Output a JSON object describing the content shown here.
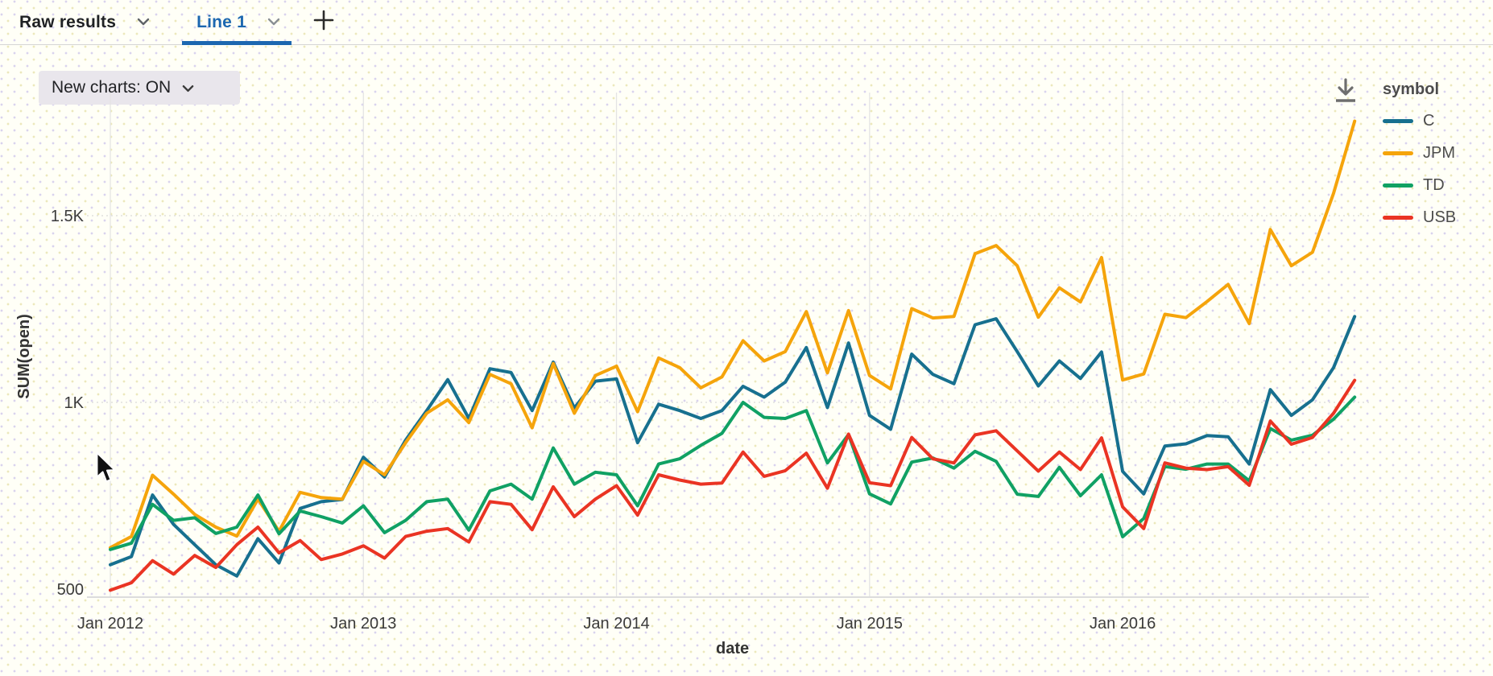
{
  "header": {
    "tabs": [
      {
        "label": "Raw results",
        "active": false
      },
      {
        "label": "Line 1",
        "active": true
      }
    ],
    "add_tab_label": "+"
  },
  "toolbar": {
    "new_charts_label": "New charts: ON"
  },
  "icons": {
    "download": "download-icon",
    "chevron_down": "chevron-down-icon",
    "plus": "plus-icon",
    "mouse_cursor": "mouse-pointer"
  },
  "colors": {
    "accent_blue": "#1c67b0",
    "series_C": "#17708f",
    "series_JPM": "#f5a40b",
    "series_TD": "#10a164",
    "series_USB": "#ea3423",
    "grid": "#e4e4e4",
    "axis_line": "#dcdcdc"
  },
  "legend": {
    "title": "symbol"
  },
  "chart_data": {
    "type": "line",
    "title": "",
    "xlabel": "date",
    "ylabel": "SUM(open)",
    "x_start": "Jan 2012",
    "x_frequency": "monthly",
    "x_ticks": [
      {
        "label": "Jan 2012",
        "month": 0
      },
      {
        "label": "Jan 2013",
        "month": 12
      },
      {
        "label": "Jan 2014",
        "month": 24
      },
      {
        "label": "Jan 2015",
        "month": 36
      },
      {
        "label": "Jan 2016",
        "month": 48
      }
    ],
    "y_ticks": [
      {
        "label": "500",
        "value": 500
      },
      {
        "label": "1K",
        "value": 1000
      },
      {
        "label": "1.5K",
        "value": 1500
      }
    ],
    "ylim": [
      483,
      1830
    ],
    "grid": "horizontal-dotted-and-vertical",
    "legend_position": "right",
    "series": [
      {
        "name": "C",
        "color": "#17708f",
        "values": [
          565,
          587,
          752,
          673,
          619,
          565,
          535,
          635,
          570,
          716,
          734,
          740,
          853,
          800,
          899,
          978,
          1061,
          957,
          1090,
          1080,
          978,
          1108,
          985,
          1057,
          1063,
          892,
          995,
          978,
          957,
          978,
          1043,
          1014,
          1054,
          1147,
          986,
          1159,
          965,
          928,
          1129,
          1075,
          1050,
          1208,
          1224,
          1136,
          1044,
          1111,
          1064,
          1135,
          815,
          755,
          883,
          889,
          911,
          908,
          835,
          1034,
          965,
          1007,
          1093,
          1230
        ]
      },
      {
        "name": "JPM",
        "color": "#f5a40b",
        "values": [
          611,
          641,
          805,
          754,
          700,
          666,
          642,
          741,
          655,
          759,
          745,
          741,
          842,
          806,
          892,
          971,
          1007,
          946,
          1075,
          1050,
          932,
          1104,
          971,
          1072,
          1097,
          975,
          1119,
          1093,
          1039,
          1068,
          1165,
          1111,
          1136,
          1243,
          1079,
          1246,
          1072,
          1036,
          1251,
          1226,
          1230,
          1398,
          1420,
          1366,
          1228,
          1307,
          1269,
          1388,
          1060,
          1076,
          1236,
          1227,
          1270,
          1316,
          1211,
          1463,
          1366,
          1402,
          1560,
          1753
        ]
      },
      {
        "name": "TD",
        "color": "#10a164",
        "values": [
          606,
          623,
          727,
          684,
          691,
          649,
          666,
          752,
          648,
          709,
          694,
          677,
          723,
          651,
          684,
          734,
          741,
          658,
          763,
          781,
          741,
          878,
          781,
          813,
          806,
          723,
          835,
          849,
          885,
          917,
          1000,
          960,
          957,
          978,
          838,
          914,
          755,
          728,
          840,
          851,
          824,
          869,
          842,
          754,
          748,
          826,
          750,
          806,
          640,
          689,
          828,
          821,
          835,
          835,
          790,
          930,
          899,
          912,
          955,
          1014
        ]
      },
      {
        "name": "USB",
        "color": "#ea3423",
        "values": [
          497,
          517,
          576,
          540,
          590,
          558,
          619,
          666,
          597,
          630,
          579,
          594,
          616,
          583,
          641,
          655,
          662,
          626,
          734,
          727,
          659,
          774,
          694,
          741,
          777,
          698,
          806,
          792,
          781,
          784,
          867,
          802,
          817,
          864,
          770,
          915,
          785,
          777,
          906,
          849,
          838,
          913,
          924,
          870,
          816,
          867,
          820,
          905,
          720,
          662,
          838,
          824,
          820,
          828,
          778,
          950,
          888,
          906,
          971,
          1059
        ]
      }
    ]
  }
}
